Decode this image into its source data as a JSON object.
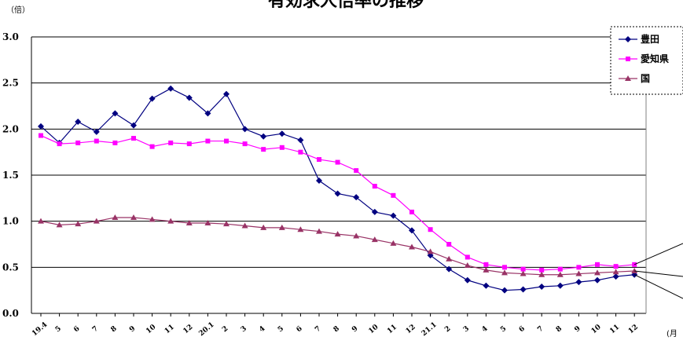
{
  "chart_data": {
    "type": "line",
    "title": "有効求人倍率の推移",
    "ylabel": "（倍）",
    "xlabel": "(月",
    "ylim": [
      0,
      3.0
    ],
    "yticks": [
      "0.0",
      "0.5",
      "1.0",
      "1.5",
      "2.0",
      "2.5",
      "3.0"
    ],
    "grid": true,
    "legend_position": "top-right",
    "categories": [
      "19.4",
      "5",
      "6",
      "7",
      "8",
      "9",
      "10",
      "11",
      "12",
      "20.1",
      "2",
      "3",
      "4",
      "5",
      "6",
      "7",
      "8",
      "9",
      "10",
      "11",
      "12",
      "21.1",
      "2",
      "3",
      "4",
      "5",
      "6",
      "7",
      "8",
      "9",
      "10",
      "11",
      "12"
    ],
    "series": [
      {
        "name": "豊田",
        "color": "#000080",
        "marker": "diamond",
        "values": [
          2.03,
          1.85,
          2.08,
          1.97,
          2.17,
          2.04,
          2.33,
          2.44,
          2.34,
          2.17,
          2.38,
          2.0,
          1.92,
          1.95,
          1.88,
          1.44,
          1.3,
          1.26,
          1.1,
          1.06,
          0.9,
          0.63,
          0.48,
          0.36,
          0.3,
          0.25,
          0.26,
          0.29,
          0.3,
          0.34,
          0.36,
          0.4,
          0.42
        ]
      },
      {
        "name": "愛知県",
        "color": "#ff00ff",
        "marker": "square",
        "values": [
          1.93,
          1.84,
          1.85,
          1.87,
          1.85,
          1.9,
          1.81,
          1.85,
          1.84,
          1.87,
          1.87,
          1.84,
          1.78,
          1.8,
          1.75,
          1.67,
          1.64,
          1.55,
          1.38,
          1.28,
          1.1,
          0.91,
          0.75,
          0.61,
          0.53,
          0.5,
          0.48,
          0.47,
          0.48,
          0.5,
          0.53,
          0.51,
          0.53
        ]
      },
      {
        "name": "国",
        "color": "#993366",
        "marker": "triangle",
        "values": [
          1.0,
          0.96,
          0.97,
          1.0,
          1.04,
          1.04,
          1.02,
          1.0,
          0.98,
          0.98,
          0.97,
          0.95,
          0.93,
          0.93,
          0.91,
          0.89,
          0.86,
          0.84,
          0.8,
          0.76,
          0.72,
          0.67,
          0.59,
          0.52,
          0.47,
          0.44,
          0.43,
          0.42,
          0.42,
          0.43,
          0.44,
          0.45,
          0.46
        ]
      }
    ]
  },
  "colors": {
    "axis": "#000000",
    "grid": "#000000"
  }
}
